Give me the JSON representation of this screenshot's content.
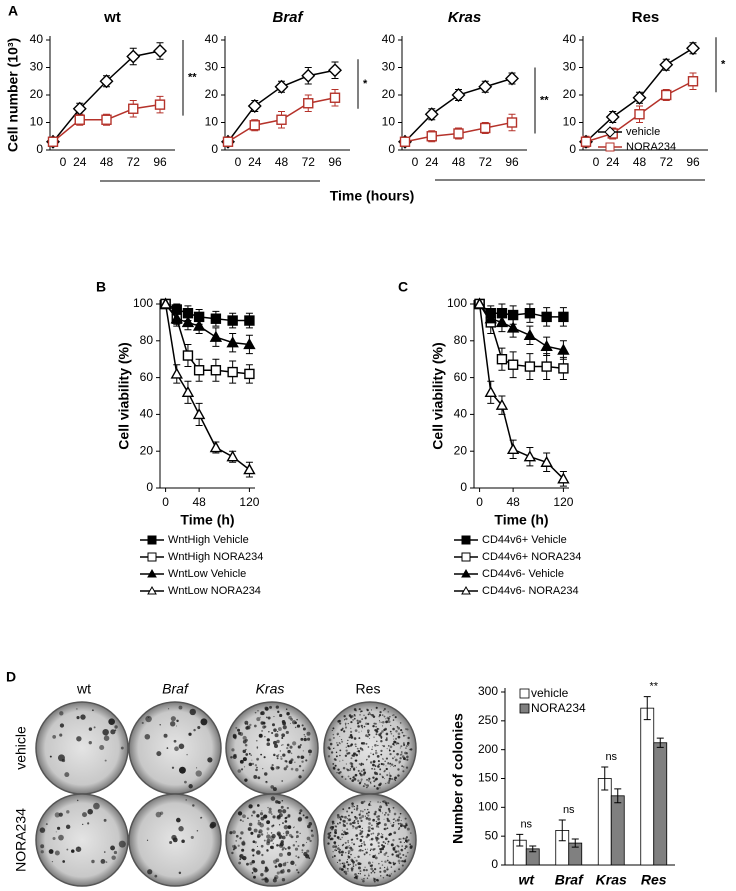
{
  "figure": {
    "panels": [
      "A",
      "B",
      "C",
      "D"
    ],
    "time_label": "Time (hours)",
    "dish_columns": [
      "wt",
      "Braf",
      "Kras",
      "Res"
    ],
    "dish_rows": [
      "vehicle",
      "NORA234"
    ]
  },
  "chart_data": [
    {
      "type": "line",
      "title": "wt",
      "title_italic": false,
      "ylabel": "Cell number (10³)",
      "categories": [
        "0",
        "24",
        "48",
        "72",
        "96"
      ],
      "ylim": [
        0,
        40
      ],
      "yticks": [
        0,
        10,
        20,
        30,
        40
      ],
      "annotation": "**",
      "series": [
        {
          "name": "vehicle",
          "color": "#000000",
          "marker": "diamond",
          "filled": false,
          "values": [
            3,
            15,
            25,
            34,
            36
          ],
          "errors": [
            1,
            2,
            2,
            3,
            3
          ]
        },
        {
          "name": "NORA234",
          "color": "#b5322a",
          "marker": "square",
          "filled": false,
          "values": [
            3,
            11,
            11,
            15,
            16.5
          ],
          "errors": [
            1,
            2,
            2,
            3,
            3
          ]
        }
      ]
    },
    {
      "type": "line",
      "title": "Braf",
      "title_italic": true,
      "categories": [
        "0",
        "24",
        "48",
        "72",
        "96"
      ],
      "ylim": [
        0,
        40
      ],
      "yticks": [
        0,
        10,
        20,
        30,
        40
      ],
      "annotation": "*",
      "series": [
        {
          "name": "vehicle",
          "color": "#000000",
          "marker": "diamond",
          "filled": false,
          "values": [
            3,
            16,
            23,
            27,
            29
          ],
          "errors": [
            1,
            2,
            2,
            3,
            3
          ]
        },
        {
          "name": "NORA234",
          "color": "#b5322a",
          "marker": "square",
          "filled": false,
          "values": [
            3,
            9,
            11,
            17,
            19
          ],
          "errors": [
            1,
            2,
            3,
            3,
            3
          ]
        }
      ]
    },
    {
      "type": "line",
      "title": "Kras",
      "title_italic": true,
      "categories": [
        "0",
        "24",
        "48",
        "72",
        "96"
      ],
      "ylim": [
        0,
        40
      ],
      "yticks": [
        0,
        10,
        20,
        30,
        40
      ],
      "annotation": "**",
      "series": [
        {
          "name": "vehicle",
          "color": "#000000",
          "marker": "diamond",
          "filled": false,
          "values": [
            3,
            13,
            20,
            23,
            26
          ],
          "errors": [
            1,
            2,
            2,
            2,
            2
          ]
        },
        {
          "name": "NORA234",
          "color": "#b5322a",
          "marker": "square",
          "filled": false,
          "values": [
            3,
            5,
            6,
            8,
            10
          ],
          "errors": [
            1,
            2,
            2,
            2,
            3
          ]
        }
      ]
    },
    {
      "type": "line",
      "title": "Res",
      "title_italic": false,
      "categories": [
        "0",
        "24",
        "48",
        "72",
        "96"
      ],
      "ylim": [
        0,
        40
      ],
      "yticks": [
        0,
        10,
        20,
        30,
        40
      ],
      "annotation": "*",
      "legend": "lower right",
      "series": [
        {
          "name": "vehicle",
          "color": "#000000",
          "marker": "diamond",
          "filled": false,
          "values": [
            3,
            12,
            19,
            31,
            37
          ],
          "errors": [
            1,
            2,
            2,
            2,
            2
          ]
        },
        {
          "name": "NORA234",
          "color": "#b5322a",
          "marker": "square",
          "filled": false,
          "values": [
            3,
            6,
            13,
            20,
            25
          ],
          "errors": [
            2,
            2,
            3,
            2,
            3
          ]
        }
      ]
    },
    {
      "type": "line",
      "ylabel": "Cell viability (%)",
      "xlabel": "Time (h)",
      "x": [
        0,
        16,
        32,
        48,
        72,
        96,
        120
      ],
      "xlim": [
        -8,
        128
      ],
      "xticks": [
        0,
        48,
        120
      ],
      "ylim": [
        0,
        100
      ],
      "yticks": [
        0,
        20,
        40,
        60,
        80,
        100
      ],
      "legend": "below",
      "series": [
        {
          "name": "WntHigh Vehicle",
          "color": "#000000",
          "marker": "square",
          "filled": true,
          "values": [
            100,
            97,
            95,
            93,
            92,
            91,
            91
          ],
          "errors": [
            1,
            3,
            4,
            4,
            4,
            4,
            4
          ]
        },
        {
          "name": "WntHigh NORA234",
          "color": "#000000",
          "marker": "square",
          "filled": false,
          "values": [
            100,
            92,
            72,
            64,
            64,
            63,
            62
          ],
          "errors": [
            1,
            4,
            6,
            6,
            6,
            6,
            5
          ]
        },
        {
          "name": "WntLow Vehicle",
          "color": "#000000",
          "marker": "triangle",
          "filled": true,
          "values": [
            100,
            92,
            90,
            88,
            82,
            79,
            78
          ],
          "errors": [
            1,
            3,
            4,
            4,
            5,
            5,
            5
          ]
        },
        {
          "name": "WntLow NORA234",
          "color": "#000000",
          "marker": "triangle",
          "filled": false,
          "values": [
            100,
            62,
            52,
            40,
            22,
            17,
            10
          ],
          "errors": [
            1,
            5,
            6,
            6,
            3,
            3,
            4
          ]
        }
      ]
    },
    {
      "type": "line",
      "ylabel": "Cell viability (%)",
      "xlabel": "Time (h)",
      "x": [
        0,
        16,
        32,
        48,
        72,
        96,
        120
      ],
      "xlim": [
        -8,
        128
      ],
      "xticks": [
        0,
        48,
        120
      ],
      "ylim": [
        0,
        100
      ],
      "yticks": [
        0,
        20,
        40,
        60,
        80,
        100
      ],
      "legend": "below",
      "series": [
        {
          "name": "CD44v6+ Vehicle",
          "color": "#000000",
          "marker": "square",
          "filled": true,
          "values": [
            100,
            95,
            95,
            94,
            95,
            93,
            93
          ],
          "errors": [
            1,
            4,
            5,
            5,
            5,
            5,
            5
          ]
        },
        {
          "name": "CD44v6+ NORA234",
          "color": "#000000",
          "marker": "square",
          "filled": false,
          "values": [
            100,
            90,
            70,
            67,
            66,
            66,
            65
          ],
          "errors": [
            1,
            6,
            6,
            7,
            7,
            7,
            6
          ]
        },
        {
          "name": "CD44v6- Vehicle",
          "color": "#000000",
          "marker": "triangle",
          "filled": true,
          "values": [
            100,
            92,
            90,
            87,
            83,
            77,
            75
          ],
          "errors": [
            1,
            4,
            5,
            5,
            5,
            5,
            5
          ]
        },
        {
          "name": "CD44v6- NORA234",
          "color": "#000000",
          "marker": "triangle",
          "filled": false,
          "values": [
            100,
            52,
            45,
            21,
            17,
            14,
            5
          ],
          "errors": [
            1,
            6,
            5,
            5,
            5,
            5,
            4
          ]
        }
      ]
    },
    {
      "type": "bar",
      "ylabel": "Number of colonies",
      "categories": [
        "wt",
        "Braf",
        "Kras",
        "Res"
      ],
      "ylim": [
        0,
        300
      ],
      "yticks": [
        0,
        50,
        100,
        150,
        200,
        250,
        300
      ],
      "legend": "upper left",
      "annotations": [
        "ns",
        "ns",
        "ns",
        "**"
      ],
      "series": [
        {
          "name": "vehicle",
          "color": "#ffffff",
          "values": [
            43,
            60,
            150,
            272
          ],
          "errors": [
            10,
            18,
            20,
            20
          ]
        },
        {
          "name": "NORA234",
          "color": "#808080",
          "values": [
            28,
            38,
            120,
            212
          ],
          "errors": [
            5,
            7,
            12,
            8
          ]
        }
      ]
    }
  ]
}
